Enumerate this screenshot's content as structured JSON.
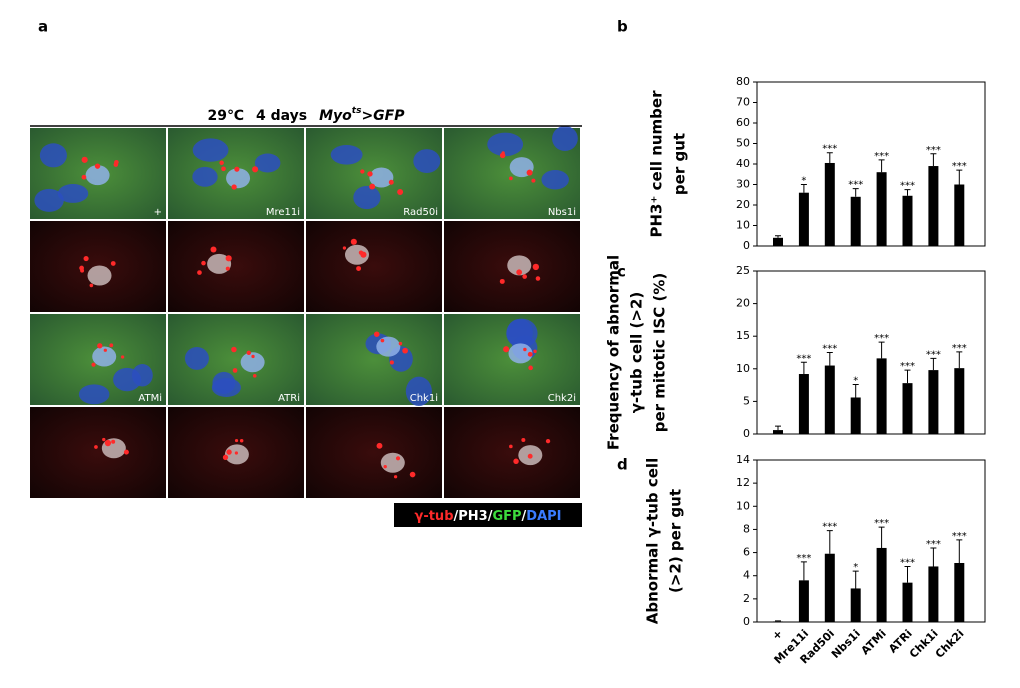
{
  "panel_a": {
    "label": "a",
    "title": [
      "29℃",
      "4 days",
      "Myo",
      "ts",
      ">GFP"
    ],
    "image_labels": [
      "+",
      "Mre11i",
      "Rad50i",
      "Nbs1i",
      "ATMi",
      "ATRi",
      "Chk1i",
      "Chk2i"
    ],
    "legend": [
      {
        "text": "γ-tub",
        "color": "#ff2a2a"
      },
      {
        "text": "/PH3/",
        "color": "#ffffff"
      },
      {
        "text": "GFP",
        "color": "#3ddc3d"
      },
      {
        "text": "/",
        "color": "#ffffff"
      },
      {
        "text": "DAPI",
        "color": "#3a7cff"
      }
    ]
  },
  "chart_data": [
    {
      "type": "bar",
      "panel": "b",
      "ylabel": [
        "PH3⁺ cell number",
        "per gut"
      ],
      "color": "#000000",
      "values": [
        4,
        26,
        40.5,
        24,
        36,
        24.5,
        39,
        30
      ],
      "errors": [
        1,
        4,
        5,
        4,
        6,
        3,
        6,
        7
      ],
      "significance": [
        null,
        "*",
        "***",
        "***",
        "***",
        "***",
        "***",
        "***"
      ],
      "ylim": [
        0,
        80
      ],
      "yticks": [
        0,
        10,
        20,
        30,
        40,
        50,
        60,
        70,
        80
      ]
    },
    {
      "type": "bar",
      "panel": "c",
      "ylabel": [
        "Frequency of abnormal",
        "γ-tub cell (>2)",
        "per mitotic ISC (%)"
      ],
      "color": "#000000",
      "values": [
        0.6,
        9.2,
        10.5,
        5.6,
        11.6,
        7.8,
        9.8,
        10.1
      ],
      "errors": [
        0.6,
        1.8,
        2,
        2,
        2.5,
        2,
        1.8,
        2.5
      ],
      "significance": [
        null,
        "***",
        "***",
        "*",
        "***",
        "***",
        "***",
        "***"
      ],
      "ylim": [
        0,
        25
      ],
      "yticks": [
        0,
        5,
        10,
        15,
        20,
        25
      ]
    },
    {
      "type": "bar",
      "panel": "d",
      "ylabel": [
        "Abnormal γ-tub cell",
        "(>2) per gut"
      ],
      "color": "#000000",
      "categories": [
        "+",
        "Mre11i",
        "Rad50i",
        "Nbs1i",
        "ATMi",
        "ATRi",
        "Chk1i",
        "Chk2i"
      ],
      "values": [
        0.05,
        3.6,
        5.9,
        2.9,
        6.4,
        3.4,
        4.8,
        5.1
      ],
      "errors": [
        0.05,
        1.6,
        2,
        1.5,
        1.8,
        1.4,
        1.6,
        2
      ],
      "significance": [
        null,
        "***",
        "***",
        "*",
        "***",
        "***",
        "***",
        "***"
      ],
      "ylim": [
        0,
        14
      ],
      "yticks": [
        0,
        2,
        4,
        6,
        8,
        10,
        12,
        14
      ]
    }
  ]
}
